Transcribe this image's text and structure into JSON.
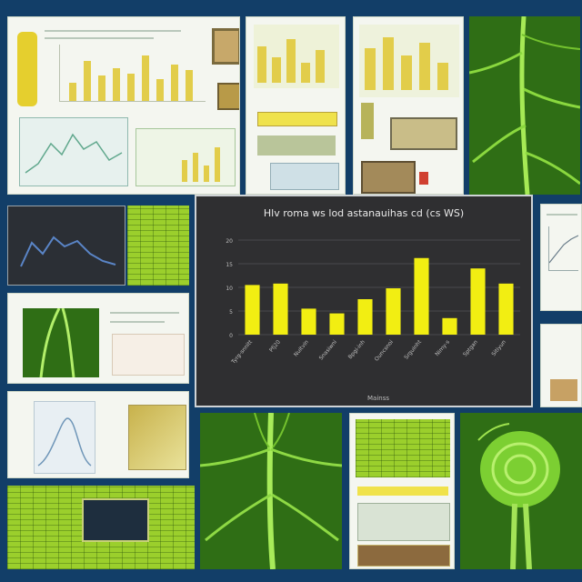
{
  "colors": {
    "background": "#123e68",
    "chart_bar": "#f2ee12",
    "chart_bg": "#2f2f31",
    "leaf_dark": "#2f6e15",
    "leaf_vein": "#9fe64a"
  },
  "chart_data": {
    "type": "bar",
    "title": "Hlv roma ws lod astanauihas cd (cs WS)",
    "xlabel": "Mainss",
    "ylabel": "",
    "ylim": [
      0,
      20
    ],
    "yticks": [
      "0",
      "5",
      "10",
      "15",
      "20"
    ],
    "categories": [
      "Tyrg-snnitt",
      "Pfj20",
      "Nuitvin",
      "Snasiwni",
      "Bpgi-inh",
      "Ouncsnoi",
      "Srguinht",
      "Nimy-s",
      "Sptgan",
      "Sitiyun"
    ],
    "values": [
      10.5,
      10.8,
      5.5,
      4.5,
      7.5,
      9.8,
      16.2,
      3.5,
      14.0,
      10.8
    ],
    "legend": []
  }
}
